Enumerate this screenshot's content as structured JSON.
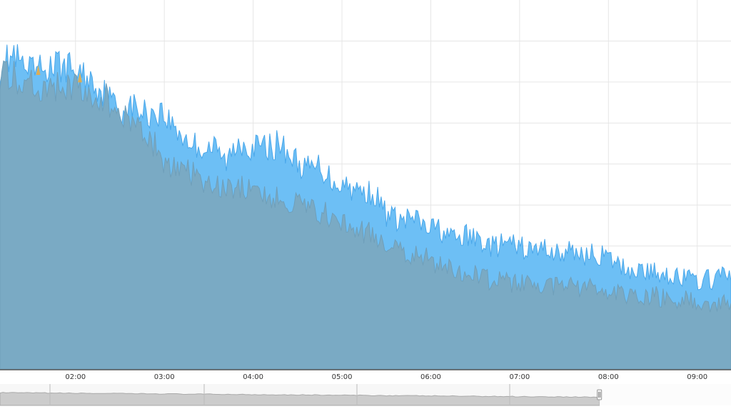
{
  "chart_data": {
    "type": "area",
    "xlabel": "",
    "ylabel": "",
    "x_axis": {
      "ticks": [
        "02:00",
        "03:00",
        "04:00",
        "05:00",
        "06:00",
        "07:00",
        "08:00",
        "09:00"
      ],
      "range_hours": [
        1.15,
        9.38
      ]
    },
    "y_axis": {
      "range": [
        0,
        100
      ],
      "labels_visible": false
    },
    "grid": true,
    "legend": "none",
    "series": [
      {
        "color": "#6dbff5",
        "stroke": "#4aa7ea",
        "points": [
          [
            1.15,
            82
          ],
          [
            1.3,
            85
          ],
          [
            1.45,
            80
          ],
          [
            1.6,
            81
          ],
          [
            1.75,
            82
          ],
          [
            1.9,
            82
          ],
          [
            2.05,
            80
          ],
          [
            2.2,
            78
          ],
          [
            2.35,
            74
          ],
          [
            2.5,
            70
          ],
          [
            2.65,
            71
          ],
          [
            2.8,
            69
          ],
          [
            2.95,
            70
          ],
          [
            3.1,
            66
          ],
          [
            3.25,
            62
          ],
          [
            3.4,
            60
          ],
          [
            3.55,
            60
          ],
          [
            3.7,
            56
          ],
          [
            3.85,
            62
          ],
          [
            4.0,
            60
          ],
          [
            4.15,
            60
          ],
          [
            4.3,
            61
          ],
          [
            4.45,
            57
          ],
          [
            4.6,
            54
          ],
          [
            4.75,
            55
          ],
          [
            4.9,
            51
          ],
          [
            5.05,
            50
          ],
          [
            5.2,
            48
          ],
          [
            5.35,
            48
          ],
          [
            5.5,
            42
          ],
          [
            5.65,
            40
          ],
          [
            5.8,
            41
          ],
          [
            5.95,
            38
          ],
          [
            6.1,
            38
          ],
          [
            6.25,
            35
          ],
          [
            6.4,
            36
          ],
          [
            6.55,
            35
          ],
          [
            6.7,
            33
          ],
          [
            6.85,
            34
          ],
          [
            7.0,
            33
          ],
          [
            7.15,
            32
          ],
          [
            7.3,
            33
          ],
          [
            7.45,
            31
          ],
          [
            7.6,
            32
          ],
          [
            7.75,
            31
          ],
          [
            7.9,
            31
          ],
          [
            8.05,
            29
          ],
          [
            8.2,
            27
          ],
          [
            8.35,
            27
          ],
          [
            8.5,
            26
          ],
          [
            8.65,
            26
          ],
          [
            8.8,
            25
          ],
          [
            8.95,
            24
          ],
          [
            9.1,
            24
          ],
          [
            9.25,
            25
          ],
          [
            9.38,
            25
          ]
        ]
      },
      {
        "color": "#7aaac4",
        "stroke": "#6f9fba",
        "points": [
          [
            1.15,
            80
          ],
          [
            1.3,
            79
          ],
          [
            1.45,
            78
          ],
          [
            1.6,
            77
          ],
          [
            1.75,
            77
          ],
          [
            1.9,
            76
          ],
          [
            2.05,
            76
          ],
          [
            2.2,
            75
          ],
          [
            2.35,
            73
          ],
          [
            2.5,
            69
          ],
          [
            2.65,
            67
          ],
          [
            2.8,
            65
          ],
          [
            2.9,
            60
          ],
          [
            3.0,
            56
          ],
          [
            3.1,
            54
          ],
          [
            3.25,
            54
          ],
          [
            3.4,
            51
          ],
          [
            3.55,
            49
          ],
          [
            3.7,
            49
          ],
          [
            3.85,
            49
          ],
          [
            4.0,
            48
          ],
          [
            4.15,
            47
          ],
          [
            4.3,
            47
          ],
          [
            4.45,
            45
          ],
          [
            4.6,
            43
          ],
          [
            4.75,
            42
          ],
          [
            4.9,
            42
          ],
          [
            5.05,
            40
          ],
          [
            5.2,
            38
          ],
          [
            5.35,
            36
          ],
          [
            5.5,
            34
          ],
          [
            5.65,
            32
          ],
          [
            5.8,
            31
          ],
          [
            5.95,
            30
          ],
          [
            6.1,
            28
          ],
          [
            6.25,
            27
          ],
          [
            6.4,
            26
          ],
          [
            6.55,
            25
          ],
          [
            6.7,
            24
          ],
          [
            6.85,
            24
          ],
          [
            7.0,
            23
          ],
          [
            7.15,
            23
          ],
          [
            7.3,
            22
          ],
          [
            7.45,
            23
          ],
          [
            7.6,
            22
          ],
          [
            7.75,
            22
          ],
          [
            7.9,
            22
          ],
          [
            8.05,
            21
          ],
          [
            8.2,
            20
          ],
          [
            8.35,
            20
          ],
          [
            8.5,
            20
          ],
          [
            8.65,
            19
          ],
          [
            8.8,
            19
          ],
          [
            8.95,
            19
          ],
          [
            9.1,
            18
          ],
          [
            9.25,
            18
          ],
          [
            9.38,
            18
          ]
        ]
      }
    ],
    "annotations": [
      {
        "color": "#f0a93a",
        "x": 1.58,
        "y": 82
      },
      {
        "color": "#f0a93a",
        "x": 2.05,
        "y": 80
      }
    ]
  },
  "navigator": {
    "fill_color": "#cccccc",
    "outline_color": "#aaaaaa",
    "selection_start_fraction": 0.0,
    "selection_end_fraction": 0.82
  }
}
